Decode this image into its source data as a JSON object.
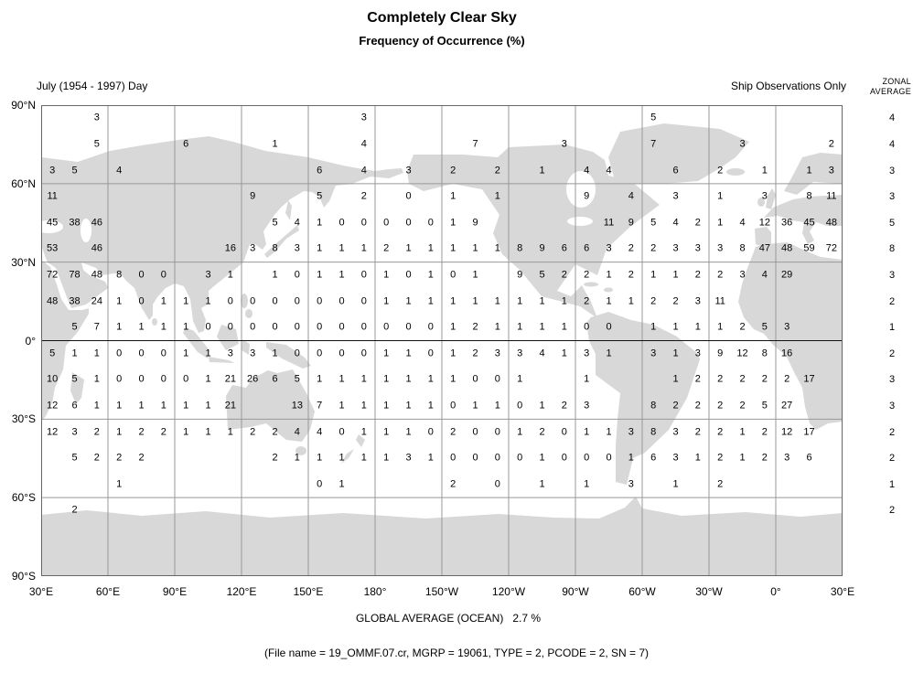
{
  "title": "Completely Clear Sky",
  "subtitle": "Frequency of Occurrence (%)",
  "period_label": "July (1954 - 1997) Day",
  "source_label": "Ship Observations Only",
  "zonal_header": [
    "ZONAL",
    "AVERAGE"
  ],
  "global_average_text": "GLOBAL AVERAGE (OCEAN)   2.7 %",
  "file_info": "(File name = 19_OMMF.07.cr, MGRP = 19061, TYPE = 2, PCODE = 2, SN = 7)",
  "colors": {
    "land": "#d8d8d8",
    "grid_line": "#999999",
    "equator_line": "#111111",
    "text": "#000000"
  },
  "chart_data": {
    "type": "heatmap",
    "title": "Completely Clear Sky",
    "subtitle": "Frequency of Occurrence (%)",
    "period": "July (1954 - 1997) Day",
    "source": "Ship Observations Only",
    "units": "percent frequency of occurrence",
    "global_average_ocean_pct": 2.7,
    "lat_axis": {
      "labels": [
        "90°N",
        "60°N",
        "30°N",
        "0°",
        "30°S",
        "60°S",
        "90°S"
      ],
      "range_deg": [
        90,
        -90
      ]
    },
    "lon_axis": {
      "labels": [
        "30°E",
        "60°E",
        "90°E",
        "120°E",
        "150°E",
        "180°",
        "150°W",
        "120°W",
        "90°W",
        "60°W",
        "30°W",
        "0°",
        "30°E"
      ],
      "start_deg_east": 30,
      "span_deg": 360
    },
    "cell_size_deg": 10,
    "zonal_averages": [
      4,
      4,
      3,
      3,
      5,
      8,
      3,
      2,
      1,
      2,
      3,
      3,
      2,
      2,
      1,
      2
    ],
    "grid": [
      [
        null,
        null,
        3,
        null,
        null,
        null,
        null,
        null,
        null,
        null,
        null,
        null,
        null,
        null,
        3,
        null,
        null,
        null,
        null,
        null,
        null,
        null,
        null,
        null,
        null,
        null,
        null,
        5,
        null,
        null,
        null,
        null,
        null,
        null,
        null,
        null
      ],
      [
        null,
        null,
        5,
        null,
        null,
        null,
        6,
        null,
        null,
        null,
        1,
        null,
        null,
        null,
        4,
        null,
        null,
        null,
        null,
        7,
        null,
        null,
        null,
        3,
        null,
        null,
        null,
        7,
        null,
        null,
        null,
        3,
        null,
        null,
        null,
        2
      ],
      [
        3,
        5,
        null,
        4,
        null,
        null,
        null,
        null,
        null,
        null,
        null,
        null,
        6,
        null,
        4,
        null,
        3,
        null,
        2,
        null,
        2,
        null,
        1,
        null,
        4,
        4,
        null,
        null,
        6,
        null,
        2,
        null,
        1,
        null,
        1,
        3
      ],
      [
        11,
        null,
        null,
        null,
        null,
        null,
        null,
        null,
        null,
        9,
        null,
        null,
        5,
        null,
        2,
        null,
        0,
        null,
        1,
        null,
        1,
        null,
        null,
        null,
        9,
        null,
        4,
        null,
        3,
        null,
        1,
        null,
        3,
        null,
        8,
        11
      ],
      [
        45,
        38,
        46,
        null,
        null,
        null,
        null,
        null,
        null,
        null,
        5,
        4,
        1,
        0,
        0,
        0,
        0,
        0,
        1,
        9,
        null,
        null,
        null,
        null,
        null,
        11,
        9,
        5,
        4,
        2,
        1,
        4,
        12,
        36,
        45,
        48
      ],
      [
        53,
        null,
        46,
        null,
        null,
        null,
        null,
        null,
        16,
        3,
        8,
        3,
        1,
        1,
        1,
        2,
        1,
        1,
        1,
        1,
        1,
        8,
        9,
        6,
        6,
        3,
        2,
        2,
        3,
        3,
        3,
        8,
        47,
        48,
        59,
        72
      ],
      [
        72,
        78,
        48,
        8,
        0,
        0,
        null,
        3,
        1,
        null,
        1,
        0,
        1,
        1,
        0,
        1,
        0,
        1,
        0,
        1,
        null,
        9,
        5,
        2,
        2,
        1,
        2,
        1,
        1,
        2,
        2,
        3,
        4,
        29,
        null,
        null
      ],
      [
        48,
        38,
        24,
        1,
        0,
        1,
        1,
        1,
        0,
        0,
        0,
        0,
        0,
        0,
        0,
        1,
        1,
        1,
        1,
        1,
        1,
        1,
        1,
        1,
        2,
        1,
        1,
        2,
        2,
        3,
        11,
        null,
        null,
        null,
        null,
        null
      ],
      [
        null,
        5,
        7,
        1,
        1,
        1,
        1,
        0,
        0,
        0,
        0,
        0,
        0,
        0,
        0,
        0,
        0,
        0,
        1,
        2,
        1,
        1,
        1,
        1,
        0,
        0,
        null,
        1,
        1,
        1,
        1,
        2,
        5,
        3,
        null,
        null
      ],
      [
        5,
        1,
        1,
        0,
        0,
        0,
        1,
        1,
        3,
        3,
        1,
        0,
        0,
        0,
        0,
        1,
        1,
        0,
        1,
        2,
        3,
        3,
        4,
        1,
        3,
        1,
        null,
        3,
        1,
        3,
        9,
        12,
        8,
        16,
        null,
        null
      ],
      [
        10,
        5,
        1,
        0,
        0,
        0,
        0,
        1,
        21,
        26,
        6,
        5,
        1,
        1,
        1,
        1,
        1,
        1,
        1,
        0,
        0,
        1,
        null,
        null,
        1,
        null,
        null,
        null,
        1,
        2,
        2,
        2,
        2,
        2,
        17,
        null
      ],
      [
        12,
        6,
        1,
        1,
        1,
        1,
        1,
        1,
        21,
        null,
        null,
        13,
        7,
        1,
        1,
        1,
        1,
        1,
        0,
        1,
        1,
        0,
        1,
        2,
        3,
        null,
        null,
        8,
        2,
        2,
        2,
        2,
        5,
        27,
        null,
        null
      ],
      [
        12,
        3,
        2,
        1,
        2,
        2,
        1,
        1,
        1,
        2,
        2,
        4,
        4,
        0,
        1,
        1,
        1,
        0,
        2,
        0,
        0,
        1,
        2,
        0,
        1,
        1,
        3,
        8,
        3,
        2,
        2,
        1,
        2,
        12,
        17,
        null
      ],
      [
        null,
        5,
        2,
        2,
        2,
        null,
        null,
        null,
        null,
        null,
        2,
        1,
        1,
        1,
        1,
        1,
        3,
        1,
        0,
        0,
        0,
        0,
        1,
        0,
        0,
        0,
        1,
        6,
        3,
        1,
        2,
        1,
        2,
        3,
        6,
        null
      ],
      [
        null,
        null,
        null,
        1,
        null,
        null,
        null,
        null,
        null,
        null,
        null,
        null,
        0,
        1,
        null,
        null,
        null,
        null,
        2,
        null,
        0,
        null,
        1,
        null,
        1,
        null,
        3,
        null,
        1,
        null,
        2,
        null,
        null,
        null,
        null,
        null
      ],
      [
        null,
        2,
        null,
        null,
        null,
        null,
        null,
        null,
        null,
        null,
        null,
        null,
        null,
        null,
        null,
        null,
        null,
        null,
        null,
        null,
        null,
        null,
        null,
        null,
        null,
        null,
        null,
        null,
        null,
        null,
        null,
        null,
        null,
        null,
        null,
        null
      ]
    ]
  }
}
